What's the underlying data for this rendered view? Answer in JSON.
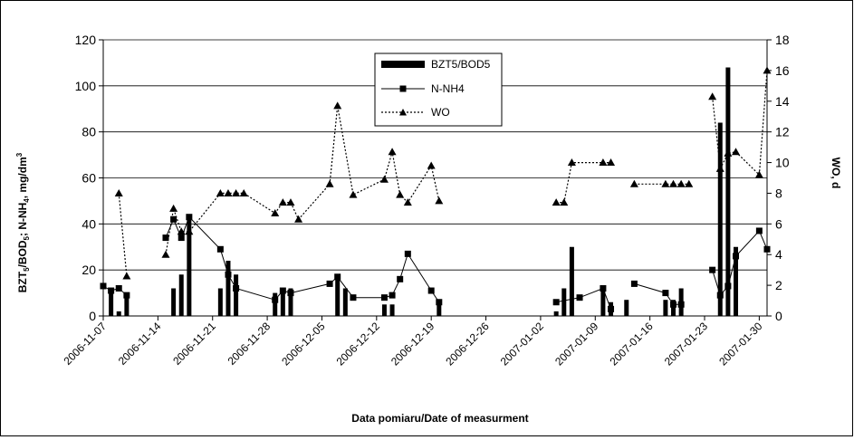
{
  "chart_data": {
    "type": "bar+line",
    "title": "",
    "xlabel": "Data pomiaru/Date of measurment",
    "ylabel": "BZT5/BOD5; N-NH4, mg/dm3",
    "ylabel_parts": {
      "a": "BZT",
      "a_sub": "5",
      "b": "/BOD",
      "b_sub": "5",
      "c": "; N-NH",
      "c_sub": "4",
      "d": ", mg/dm",
      "d_sup": "3"
    },
    "y2label": "WO, d",
    "grid": true,
    "legend_position": "top-center",
    "x_range": [
      "2006-11-07",
      "2007-01-31"
    ],
    "x_ticks": [
      "2006-11-07",
      "2006-11-14",
      "2006-11-21",
      "2006-11-28",
      "2006-12-05",
      "2006-12-12",
      "2006-12-19",
      "2006-12-26",
      "2007-01-02",
      "2007-01-09",
      "2007-01-16",
      "2007-01-23",
      "2007-01-30"
    ],
    "y_left": {
      "min": 0,
      "max": 120,
      "ticks": [
        "0",
        "20",
        "40",
        "60",
        "80",
        "100",
        "120"
      ]
    },
    "y_right": {
      "min": 0,
      "max": 18,
      "ticks": [
        "0",
        "2",
        "4",
        "6",
        "8",
        "10",
        "12",
        "14",
        "16",
        "18"
      ]
    },
    "series": [
      {
        "name": "BZT5/BOD5",
        "kind": "bar",
        "axis": "left",
        "points": [
          {
            "x": "2006-11-08",
            "y": 10
          },
          {
            "x": "2006-11-09",
            "y": 2
          },
          {
            "x": "2006-11-10",
            "y": 10
          },
          {
            "x": "2006-11-16",
            "y": 12
          },
          {
            "x": "2006-11-17",
            "y": 18
          },
          {
            "x": "2006-11-18",
            "y": 44
          },
          {
            "x": "2006-11-22",
            "y": 12
          },
          {
            "x": "2006-11-23",
            "y": 24
          },
          {
            "x": "2006-11-24",
            "y": 18
          },
          {
            "x": "2006-11-29",
            "y": 10
          },
          {
            "x": "2006-11-30",
            "y": 12
          },
          {
            "x": "2006-12-01",
            "y": 12
          },
          {
            "x": "2006-12-07",
            "y": 18
          },
          {
            "x": "2006-12-08",
            "y": 12
          },
          {
            "x": "2006-12-13",
            "y": 5
          },
          {
            "x": "2006-12-14",
            "y": 5
          },
          {
            "x": "2006-12-20",
            "y": 7
          },
          {
            "x": "2007-01-04",
            "y": 2
          },
          {
            "x": "2007-01-05",
            "y": 12
          },
          {
            "x": "2007-01-06",
            "y": 30
          },
          {
            "x": "2007-01-10",
            "y": 12
          },
          {
            "x": "2007-01-11",
            "y": 6
          },
          {
            "x": "2007-01-13",
            "y": 7
          },
          {
            "x": "2007-01-18",
            "y": 7
          },
          {
            "x": "2007-01-19",
            "y": 7
          },
          {
            "x": "2007-01-20",
            "y": 12
          },
          {
            "x": "2007-01-25",
            "y": 84
          },
          {
            "x": "2007-01-26",
            "y": 108
          },
          {
            "x": "2007-01-27",
            "y": 30
          }
        ]
      },
      {
        "name": "N-NH4",
        "kind": "line",
        "axis": "left",
        "segments": [
          [
            {
              "x": "2006-11-07",
              "y": 13
            },
            {
              "x": "2006-11-08",
              "y": 11
            },
            {
              "x": "2006-11-09",
              "y": 12
            },
            {
              "x": "2006-11-10",
              "y": 9
            }
          ],
          [
            {
              "x": "2006-11-15",
              "y": 34
            },
            {
              "x": "2006-11-16",
              "y": 42
            },
            {
              "x": "2006-11-17",
              "y": 34
            },
            {
              "x": "2006-11-18",
              "y": 43
            },
            {
              "x": "2006-11-22",
              "y": 29
            },
            {
              "x": "2006-11-23",
              "y": 18
            },
            {
              "x": "2006-11-24",
              "y": 12
            },
            {
              "x": "2006-11-29",
              "y": 7
            },
            {
              "x": "2006-11-30",
              "y": 11
            },
            {
              "x": "2006-12-01",
              "y": 10
            },
            {
              "x": "2006-12-06",
              "y": 14
            },
            {
              "x": "2006-12-07",
              "y": 17
            },
            {
              "x": "2006-12-09",
              "y": 8
            },
            {
              "x": "2006-12-13",
              "y": 8
            },
            {
              "x": "2006-12-14",
              "y": 9
            },
            {
              "x": "2006-12-15",
              "y": 16
            },
            {
              "x": "2006-12-16",
              "y": 27
            },
            {
              "x": "2006-12-19",
              "y": 11
            },
            {
              "x": "2006-12-20",
              "y": 6
            }
          ],
          [
            {
              "x": "2007-01-04",
              "y": 6
            },
            {
              "x": "2007-01-07",
              "y": 8
            },
            {
              "x": "2007-01-10",
              "y": 12
            },
            {
              "x": "2007-01-11",
              "y": 3
            }
          ],
          [
            {
              "x": "2007-01-14",
              "y": 14
            },
            {
              "x": "2007-01-18",
              "y": 10
            },
            {
              "x": "2007-01-19",
              "y": 5
            },
            {
              "x": "2007-01-20",
              "y": 5
            }
          ],
          [
            {
              "x": "2007-01-24",
              "y": 20
            },
            {
              "x": "2007-01-25",
              "y": 9
            },
            {
              "x": "2007-01-26",
              "y": 13
            },
            {
              "x": "2007-01-27",
              "y": 26
            },
            {
              "x": "2007-01-30",
              "y": 37
            },
            {
              "x": "2007-01-31",
              "y": 29
            }
          ]
        ]
      },
      {
        "name": "WO",
        "kind": "line",
        "axis": "right",
        "segments": [
          [
            {
              "x": "2006-11-09",
              "y": 8
            },
            {
              "x": "2006-11-10",
              "y": 2.6
            }
          ],
          [
            {
              "x": "2006-11-15",
              "y": 4
            },
            {
              "x": "2006-11-16",
              "y": 7
            },
            {
              "x": "2006-11-17",
              "y": 5.5
            },
            {
              "x": "2006-11-18",
              "y": 5.5
            },
            {
              "x": "2006-11-22",
              "y": 8
            },
            {
              "x": "2006-11-23",
              "y": 8
            },
            {
              "x": "2006-11-24",
              "y": 8
            },
            {
              "x": "2006-11-25",
              "y": 8
            },
            {
              "x": "2006-11-29",
              "y": 6.7
            },
            {
              "x": "2006-11-30",
              "y": 7.4
            },
            {
              "x": "2006-12-01",
              "y": 7.4
            },
            {
              "x": "2006-12-02",
              "y": 6.3
            },
            {
              "x": "2006-12-06",
              "y": 8.6
            },
            {
              "x": "2006-12-07",
              "y": 13.7
            },
            {
              "x": "2006-12-09",
              "y": 7.9
            },
            {
              "x": "2006-12-13",
              "y": 8.9
            },
            {
              "x": "2006-12-14",
              "y": 10.7
            },
            {
              "x": "2006-12-15",
              "y": 7.9
            },
            {
              "x": "2006-12-16",
              "y": 7.4
            },
            {
              "x": "2006-12-19",
              "y": 9.8
            },
            {
              "x": "2006-12-20",
              "y": 7.5
            }
          ],
          [
            {
              "x": "2007-01-04",
              "y": 7.4
            },
            {
              "x": "2007-01-05",
              "y": 7.4
            },
            {
              "x": "2007-01-06",
              "y": 10
            },
            {
              "x": "2007-01-10",
              "y": 10
            },
            {
              "x": "2007-01-11",
              "y": 10
            }
          ],
          [
            {
              "x": "2007-01-14",
              "y": 8.6
            },
            {
              "x": "2007-01-18",
              "y": 8.6
            },
            {
              "x": "2007-01-19",
              "y": 8.6
            },
            {
              "x": "2007-01-20",
              "y": 8.6
            },
            {
              "x": "2007-01-21",
              "y": 8.6
            }
          ],
          [
            {
              "x": "2007-01-24",
              "y": 14.3
            },
            {
              "x": "2007-01-25",
              "y": 9.6
            },
            {
              "x": "2007-01-26",
              "y": 10.6
            },
            {
              "x": "2007-01-27",
              "y": 10.7
            },
            {
              "x": "2007-01-30",
              "y": 9.2
            },
            {
              "x": "2007-01-31",
              "y": 16
            }
          ]
        ]
      }
    ]
  }
}
